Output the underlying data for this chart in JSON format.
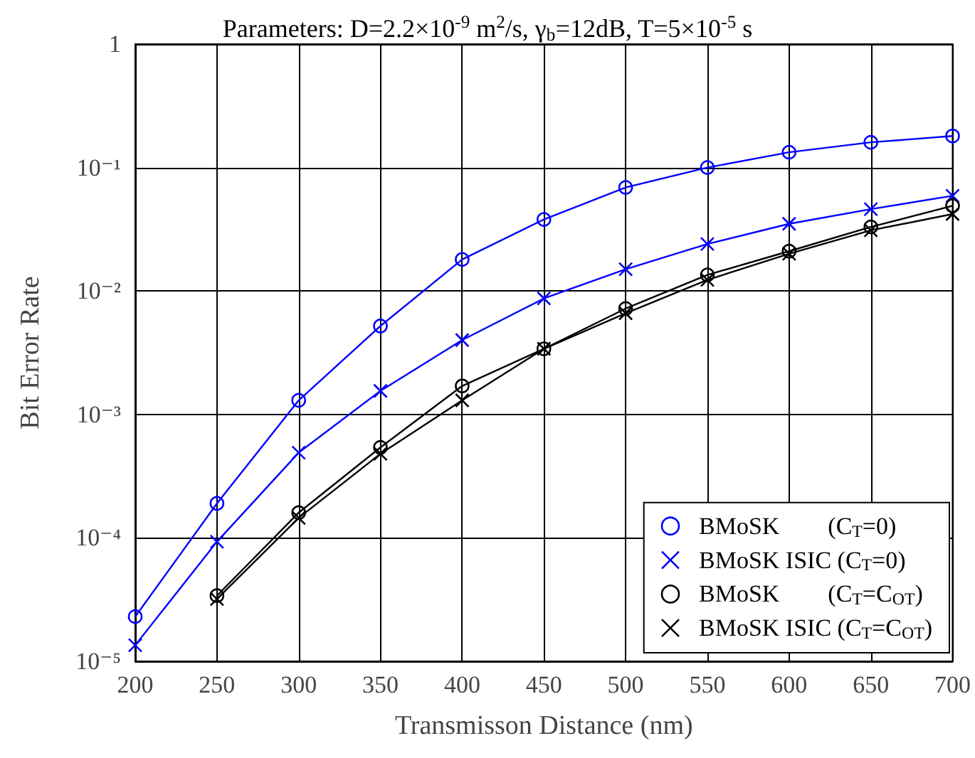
{
  "chart_data": {
    "type": "line",
    "title": "Parameters: D=2.2×10$^{-9}$ m$^{2}$/s, γ$_{b}$=12dB, T=5×10$^{-5}$ s",
    "xlabel": "Transmisson Distance (nm)",
    "ylabel": "Bit Error Rate",
    "x": [
      200,
      250,
      300,
      350,
      400,
      450,
      500,
      550,
      600,
      650,
      700
    ],
    "series": [
      {
        "name": "BMoSK        (C$_{T}$=0)",
        "color": "#0000ff",
        "marker": "circle",
        "values": [
          2.3e-05,
          0.00019,
          0.0013,
          0.0052,
          0.018,
          0.038,
          0.069,
          0.1,
          0.133,
          0.16,
          0.18
        ]
      },
      {
        "name": "BMoSK ISIC (C$_{T}$=0)",
        "color": "#0000ff",
        "marker": "cross",
        "values": [
          1.35e-05,
          9.3e-05,
          0.00049,
          0.00155,
          0.004,
          0.0087,
          0.015,
          0.024,
          0.035,
          0.046,
          0.059
        ]
      },
      {
        "name": "BMoSK        (C$_{T}$=C$_{OT}$)",
        "color": "#000000",
        "marker": "circle",
        "values": [
          null,
          3.4e-05,
          0.00016,
          0.00054,
          0.0017,
          0.0034,
          0.0072,
          0.0135,
          0.021,
          0.033,
          0.049
        ]
      },
      {
        "name": "BMoSK ISIC (C$_{T}$=C$_{OT}$)",
        "color": "#000000",
        "marker": "cross",
        "values": [
          null,
          3.2e-05,
          0.000145,
          0.00048,
          0.0013,
          0.0034,
          0.0066,
          0.0123,
          0.02,
          0.031,
          0.042
        ]
      }
    ],
    "xlim": [
      200,
      700
    ],
    "xticks": [
      200,
      250,
      300,
      350,
      400,
      450,
      500,
      550,
      600,
      650,
      700
    ],
    "ylim": [
      1e-05,
      1
    ],
    "yticks": [
      {
        "value": 1e-05,
        "label": "10⁻⁵"
      },
      {
        "value": 0.0001,
        "label": "10⁻⁴"
      },
      {
        "value": 0.001,
        "label": "10⁻³"
      },
      {
        "value": 0.01,
        "label": "10⁻²"
      },
      {
        "value": 0.1,
        "label": "10⁻¹"
      },
      {
        "value": 1,
        "label": "1"
      }
    ],
    "log": "y",
    "grid": true,
    "legend": "bottom right",
    "line_style": "solid"
  }
}
